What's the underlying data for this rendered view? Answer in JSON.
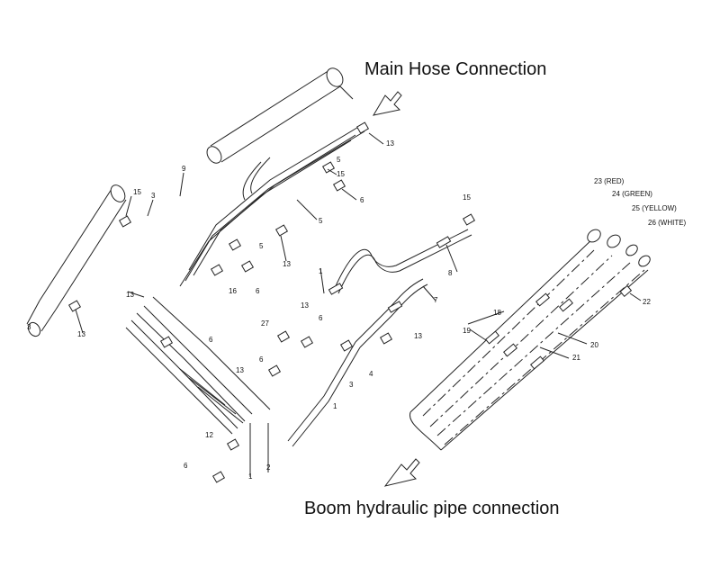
{
  "headings": {
    "main_hose": "Main Hose Connection",
    "boom_pipe": "Boom hydraulic pipe connection"
  },
  "callouts": {
    "c13a": "13",
    "c15a": "15",
    "c6a": "6",
    "c5a": "5",
    "c13b": "13",
    "c9": "9",
    "c3a": "3",
    "c13c": "13",
    "c13d": "13",
    "c15b": "15",
    "c8": "8",
    "c7": "7",
    "c1a": "1",
    "c16": "16",
    "c6b": "6",
    "c6c": "6",
    "c5b": "5",
    "c13e": "13",
    "c6d": "6",
    "c27": "27",
    "c6e": "6",
    "c13f": "13",
    "c4": "4",
    "c3b": "3",
    "c1b": "1",
    "c13g": "13",
    "c12": "12",
    "c15c": "15",
    "c1c": "1",
    "c2": "2",
    "c5c": "5",
    "c3c": "3",
    "c23": "23 (RED)",
    "c24": "24 (GREEN)",
    "c25": "25 (YELLOW)",
    "c26": "26 (WHITE)",
    "c22": "22",
    "c18": "18",
    "c19": "19",
    "c20": "20",
    "c21": "21",
    "c6f": "6"
  }
}
